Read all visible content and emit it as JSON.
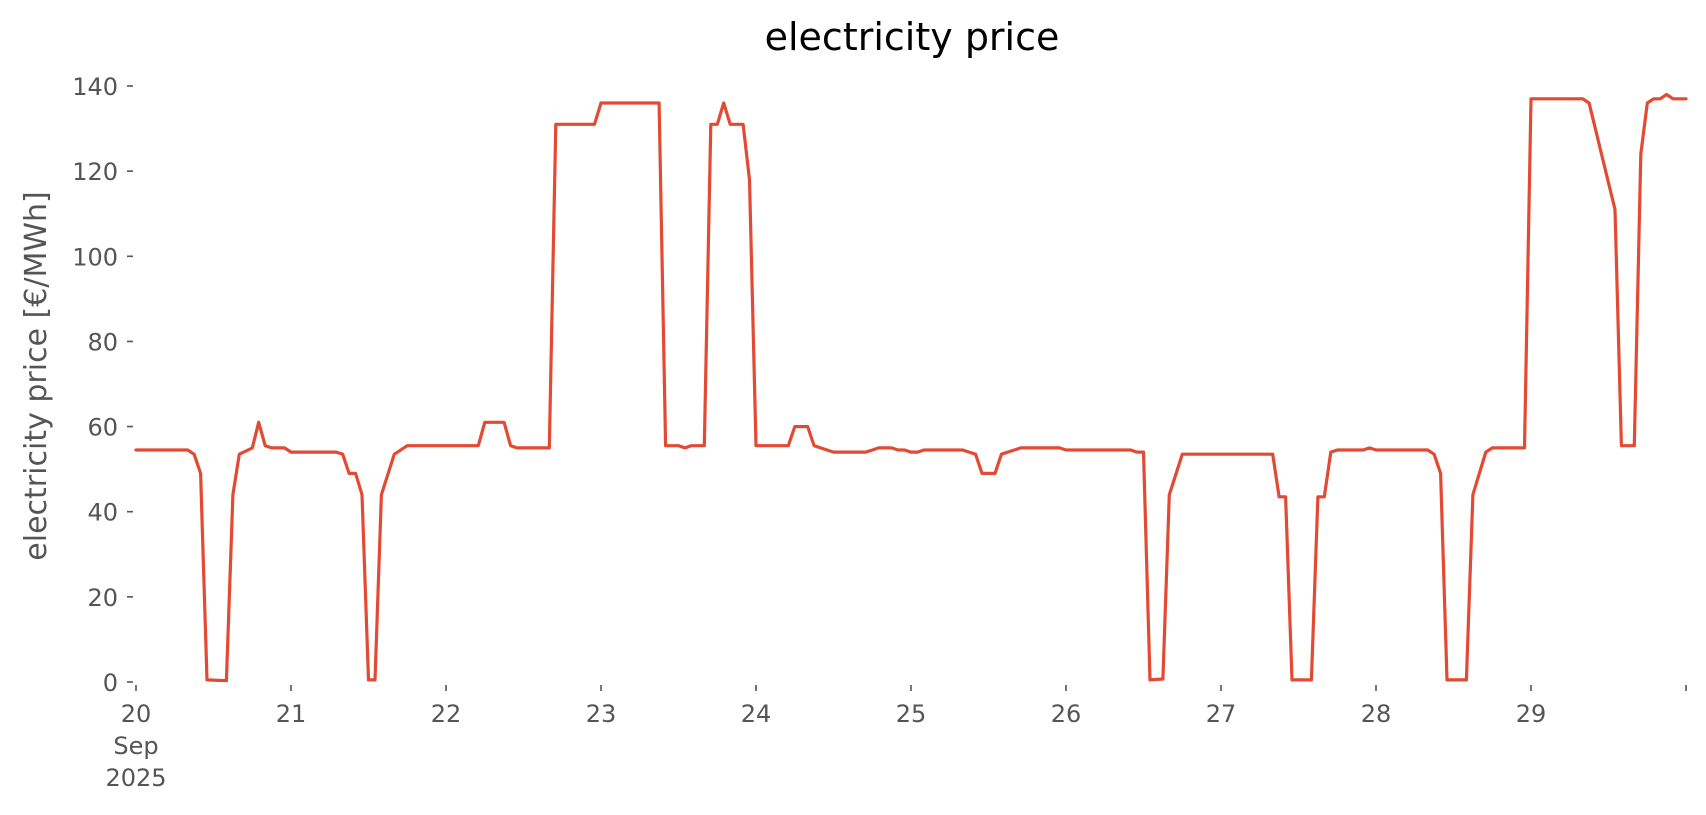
{
  "chart_data": {
    "type": "line",
    "title": "electricity price",
    "xlabel": "",
    "ylabel": "electricity price [€/MWh]",
    "ylim": [
      0,
      140
    ],
    "yticks": [
      0,
      20,
      40,
      60,
      80,
      100,
      120,
      140
    ],
    "xlim": [
      "2025-09-20T00:00",
      "2025-09-30T00:00"
    ],
    "xticks": [
      {
        "x": "2025-09-20",
        "label": [
          "20",
          "Sep",
          "2025"
        ]
      },
      {
        "x": "2025-09-21",
        "label": [
          "21"
        ]
      },
      {
        "x": "2025-09-22",
        "label": [
          "22"
        ]
      },
      {
        "x": "2025-09-23",
        "label": [
          "23"
        ]
      },
      {
        "x": "2025-09-24",
        "label": [
          "24"
        ]
      },
      {
        "x": "2025-09-25",
        "label": [
          "25"
        ]
      },
      {
        "x": "2025-09-26",
        "label": [
          "26"
        ]
      },
      {
        "x": "2025-09-27",
        "label": [
          "27"
        ]
      },
      {
        "x": "2025-09-28",
        "label": [
          "28"
        ]
      },
      {
        "x": "2025-09-29",
        "label": [
          "29"
        ]
      },
      {
        "x": "2025-09-30",
        "label": [
          ""
        ]
      }
    ],
    "grid": false,
    "color": "#E24A33",
    "series": [
      {
        "points": [
          [
            "2025-09-20T00:00",
            54.5
          ],
          [
            "2025-09-20T08:00",
            54.5
          ],
          [
            "2025-09-20T09:00",
            53.5
          ],
          [
            "2025-09-20T10:00",
            49
          ],
          [
            "2025-09-20T11:00",
            0.5
          ],
          [
            "2025-09-20T14:00",
            0.3
          ],
          [
            "2025-09-20T15:00",
            44
          ],
          [
            "2025-09-20T16:00",
            53.5
          ],
          [
            "2025-09-20T18:00",
            55
          ],
          [
            "2025-09-20T19:00",
            61
          ],
          [
            "2025-09-20T20:00",
            55.5
          ],
          [
            "2025-09-20T21:00",
            55
          ],
          [
            "2025-09-20T23:00",
            55
          ],
          [
            "2025-09-21T00:00",
            54
          ],
          [
            "2025-09-21T07:00",
            54
          ],
          [
            "2025-09-21T08:00",
            53.5
          ],
          [
            "2025-09-21T09:00",
            49
          ],
          [
            "2025-09-21T10:00",
            49
          ],
          [
            "2025-09-21T11:00",
            44
          ],
          [
            "2025-09-21T12:00",
            0.5
          ],
          [
            "2025-09-21T13:00",
            0.5
          ],
          [
            "2025-09-21T14:00",
            44
          ],
          [
            "2025-09-21T16:00",
            53.5
          ],
          [
            "2025-09-21T18:00",
            55.5
          ],
          [
            "2025-09-22T00:00",
            55.5
          ],
          [
            "2025-09-22T05:00",
            55.5
          ],
          [
            "2025-09-22T06:00",
            61
          ],
          [
            "2025-09-22T09:00",
            61
          ],
          [
            "2025-09-22T10:00",
            55.5
          ],
          [
            "2025-09-22T11:00",
            55
          ],
          [
            "2025-09-22T16:00",
            55
          ],
          [
            "2025-09-22T17:00",
            131
          ],
          [
            "2025-09-22T23:00",
            131
          ],
          [
            "2025-09-23T00:00",
            136
          ],
          [
            "2025-09-23T09:00",
            136
          ],
          [
            "2025-09-23T10:00",
            55.5
          ],
          [
            "2025-09-23T12:00",
            55.5
          ],
          [
            "2025-09-23T13:00",
            55
          ],
          [
            "2025-09-23T14:00",
            55.5
          ],
          [
            "2025-09-23T16:00",
            55.5
          ],
          [
            "2025-09-23T17:00",
            131
          ],
          [
            "2025-09-23T18:00",
            131
          ],
          [
            "2025-09-23T19:00",
            136
          ],
          [
            "2025-09-23T20:00",
            131
          ],
          [
            "2025-09-23T22:00",
            131
          ],
          [
            "2025-09-23T23:00",
            118
          ],
          [
            "2025-09-24T00:00",
            55.5
          ],
          [
            "2025-09-24T05:00",
            55.5
          ],
          [
            "2025-09-24T06:00",
            60
          ],
          [
            "2025-09-24T08:00",
            60
          ],
          [
            "2025-09-24T09:00",
            55.5
          ],
          [
            "2025-09-24T10:00",
            55
          ],
          [
            "2025-09-24T12:00",
            54
          ],
          [
            "2025-09-24T17:00",
            54
          ],
          [
            "2025-09-24T18:00",
            54.5
          ],
          [
            "2025-09-24T19:00",
            55
          ],
          [
            "2025-09-24T21:00",
            55
          ],
          [
            "2025-09-24T22:00",
            54.5
          ],
          [
            "2025-09-24T23:00",
            54.5
          ],
          [
            "2025-09-25T00:00",
            54
          ],
          [
            "2025-09-25T01:00",
            54
          ],
          [
            "2025-09-25T02:00",
            54.5
          ],
          [
            "2025-09-25T08:00",
            54.5
          ],
          [
            "2025-09-25T09:00",
            54
          ],
          [
            "2025-09-25T10:00",
            53.5
          ],
          [
            "2025-09-25T11:00",
            49
          ],
          [
            "2025-09-25T13:00",
            49
          ],
          [
            "2025-09-25T14:00",
            53.5
          ],
          [
            "2025-09-25T16:00",
            54.5
          ],
          [
            "2025-09-25T17:00",
            55
          ],
          [
            "2025-09-25T23:00",
            55
          ],
          [
            "2025-09-26T00:00",
            54.5
          ],
          [
            "2025-09-26T10:00",
            54.5
          ],
          [
            "2025-09-26T11:00",
            54
          ],
          [
            "2025-09-26T12:00",
            54
          ],
          [
            "2025-09-26T13:00",
            0.5
          ],
          [
            "2025-09-26T15:00",
            0.7
          ],
          [
            "2025-09-26T16:00",
            44
          ],
          [
            "2025-09-26T18:00",
            53.5
          ],
          [
            "2025-09-27T00:00",
            53.5
          ],
          [
            "2025-09-27T08:00",
            53.5
          ],
          [
            "2025-09-27T09:00",
            43.5
          ],
          [
            "2025-09-27T10:00",
            43.5
          ],
          [
            "2025-09-27T11:00",
            0.5
          ],
          [
            "2025-09-27T14:00",
            0.5
          ],
          [
            "2025-09-27T15:00",
            43.5
          ],
          [
            "2025-09-27T16:00",
            43.5
          ],
          [
            "2025-09-27T17:00",
            54
          ],
          [
            "2025-09-27T18:00",
            54.5
          ],
          [
            "2025-09-27T22:00",
            54.5
          ],
          [
            "2025-09-27T23:00",
            55
          ],
          [
            "2025-09-28T00:00",
            54.5
          ],
          [
            "2025-09-28T08:00",
            54.5
          ],
          [
            "2025-09-28T09:00",
            53.5
          ],
          [
            "2025-09-28T10:00",
            49
          ],
          [
            "2025-09-28T11:00",
            0.5
          ],
          [
            "2025-09-28T14:00",
            0.5
          ],
          [
            "2025-09-28T15:00",
            44
          ],
          [
            "2025-09-28T17:00",
            54
          ],
          [
            "2025-09-28T18:00",
            55
          ],
          [
            "2025-09-28T23:00",
            55
          ],
          [
            "2025-09-29T00:00",
            137
          ],
          [
            "2025-09-29T08:00",
            137
          ],
          [
            "2025-09-29T09:00",
            136
          ],
          [
            "2025-09-29T13:00",
            111
          ],
          [
            "2025-09-29T14:00",
            55.5
          ],
          [
            "2025-09-29T16:00",
            55.5
          ],
          [
            "2025-09-29T17:00",
            124
          ],
          [
            "2025-09-29T18:00",
            136
          ],
          [
            "2025-09-29T19:00",
            137
          ],
          [
            "2025-09-29T20:00",
            137
          ],
          [
            "2025-09-29T21:00",
            138
          ],
          [
            "2025-09-29T22:00",
            137
          ],
          [
            "2025-09-30T00:00",
            137
          ]
        ]
      }
    ]
  }
}
